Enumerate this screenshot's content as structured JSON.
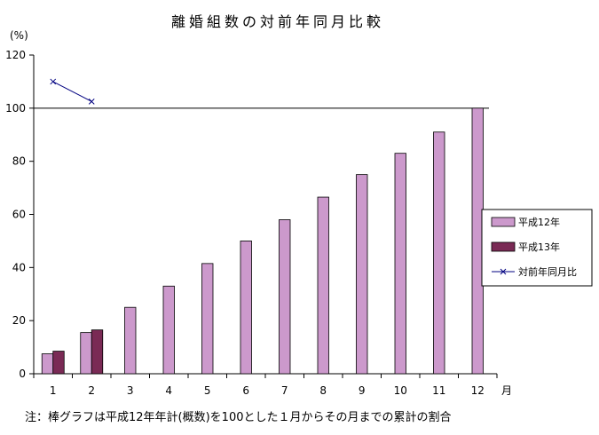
{
  "chart_data": {
    "type": "bar",
    "title": "離婚組数の対前年同月比較",
    "ylabel": "(%)",
    "xlabel": "月",
    "categories": [
      "1",
      "2",
      "3",
      "4",
      "5",
      "6",
      "7",
      "8",
      "9",
      "10",
      "11",
      "12"
    ],
    "ylim": [
      0,
      120
    ],
    "yticks": [
      0,
      20,
      40,
      60,
      80,
      100,
      120
    ],
    "reference_line": 100,
    "series": [
      {
        "name": "平成12年",
        "kind": "bar",
        "color": "#cc99cc",
        "values": [
          7.5,
          15.5,
          25,
          33,
          41.5,
          50,
          58,
          66.5,
          75,
          83,
          91,
          100
        ]
      },
      {
        "name": "平成13年",
        "kind": "bar",
        "color": "#7a2a55",
        "values": [
          8.5,
          16.5,
          null,
          null,
          null,
          null,
          null,
          null,
          null,
          null,
          null,
          null
        ]
      },
      {
        "name": "対前年同月比",
        "kind": "line",
        "color": "#000080",
        "values": [
          110,
          102.5,
          null,
          null,
          null,
          null,
          null,
          null,
          null,
          null,
          null,
          null
        ]
      }
    ],
    "legend_position": "right",
    "note": "注：棒グラフは平成12年年計(概数)を100とした１月からその月までの累計の割合"
  }
}
